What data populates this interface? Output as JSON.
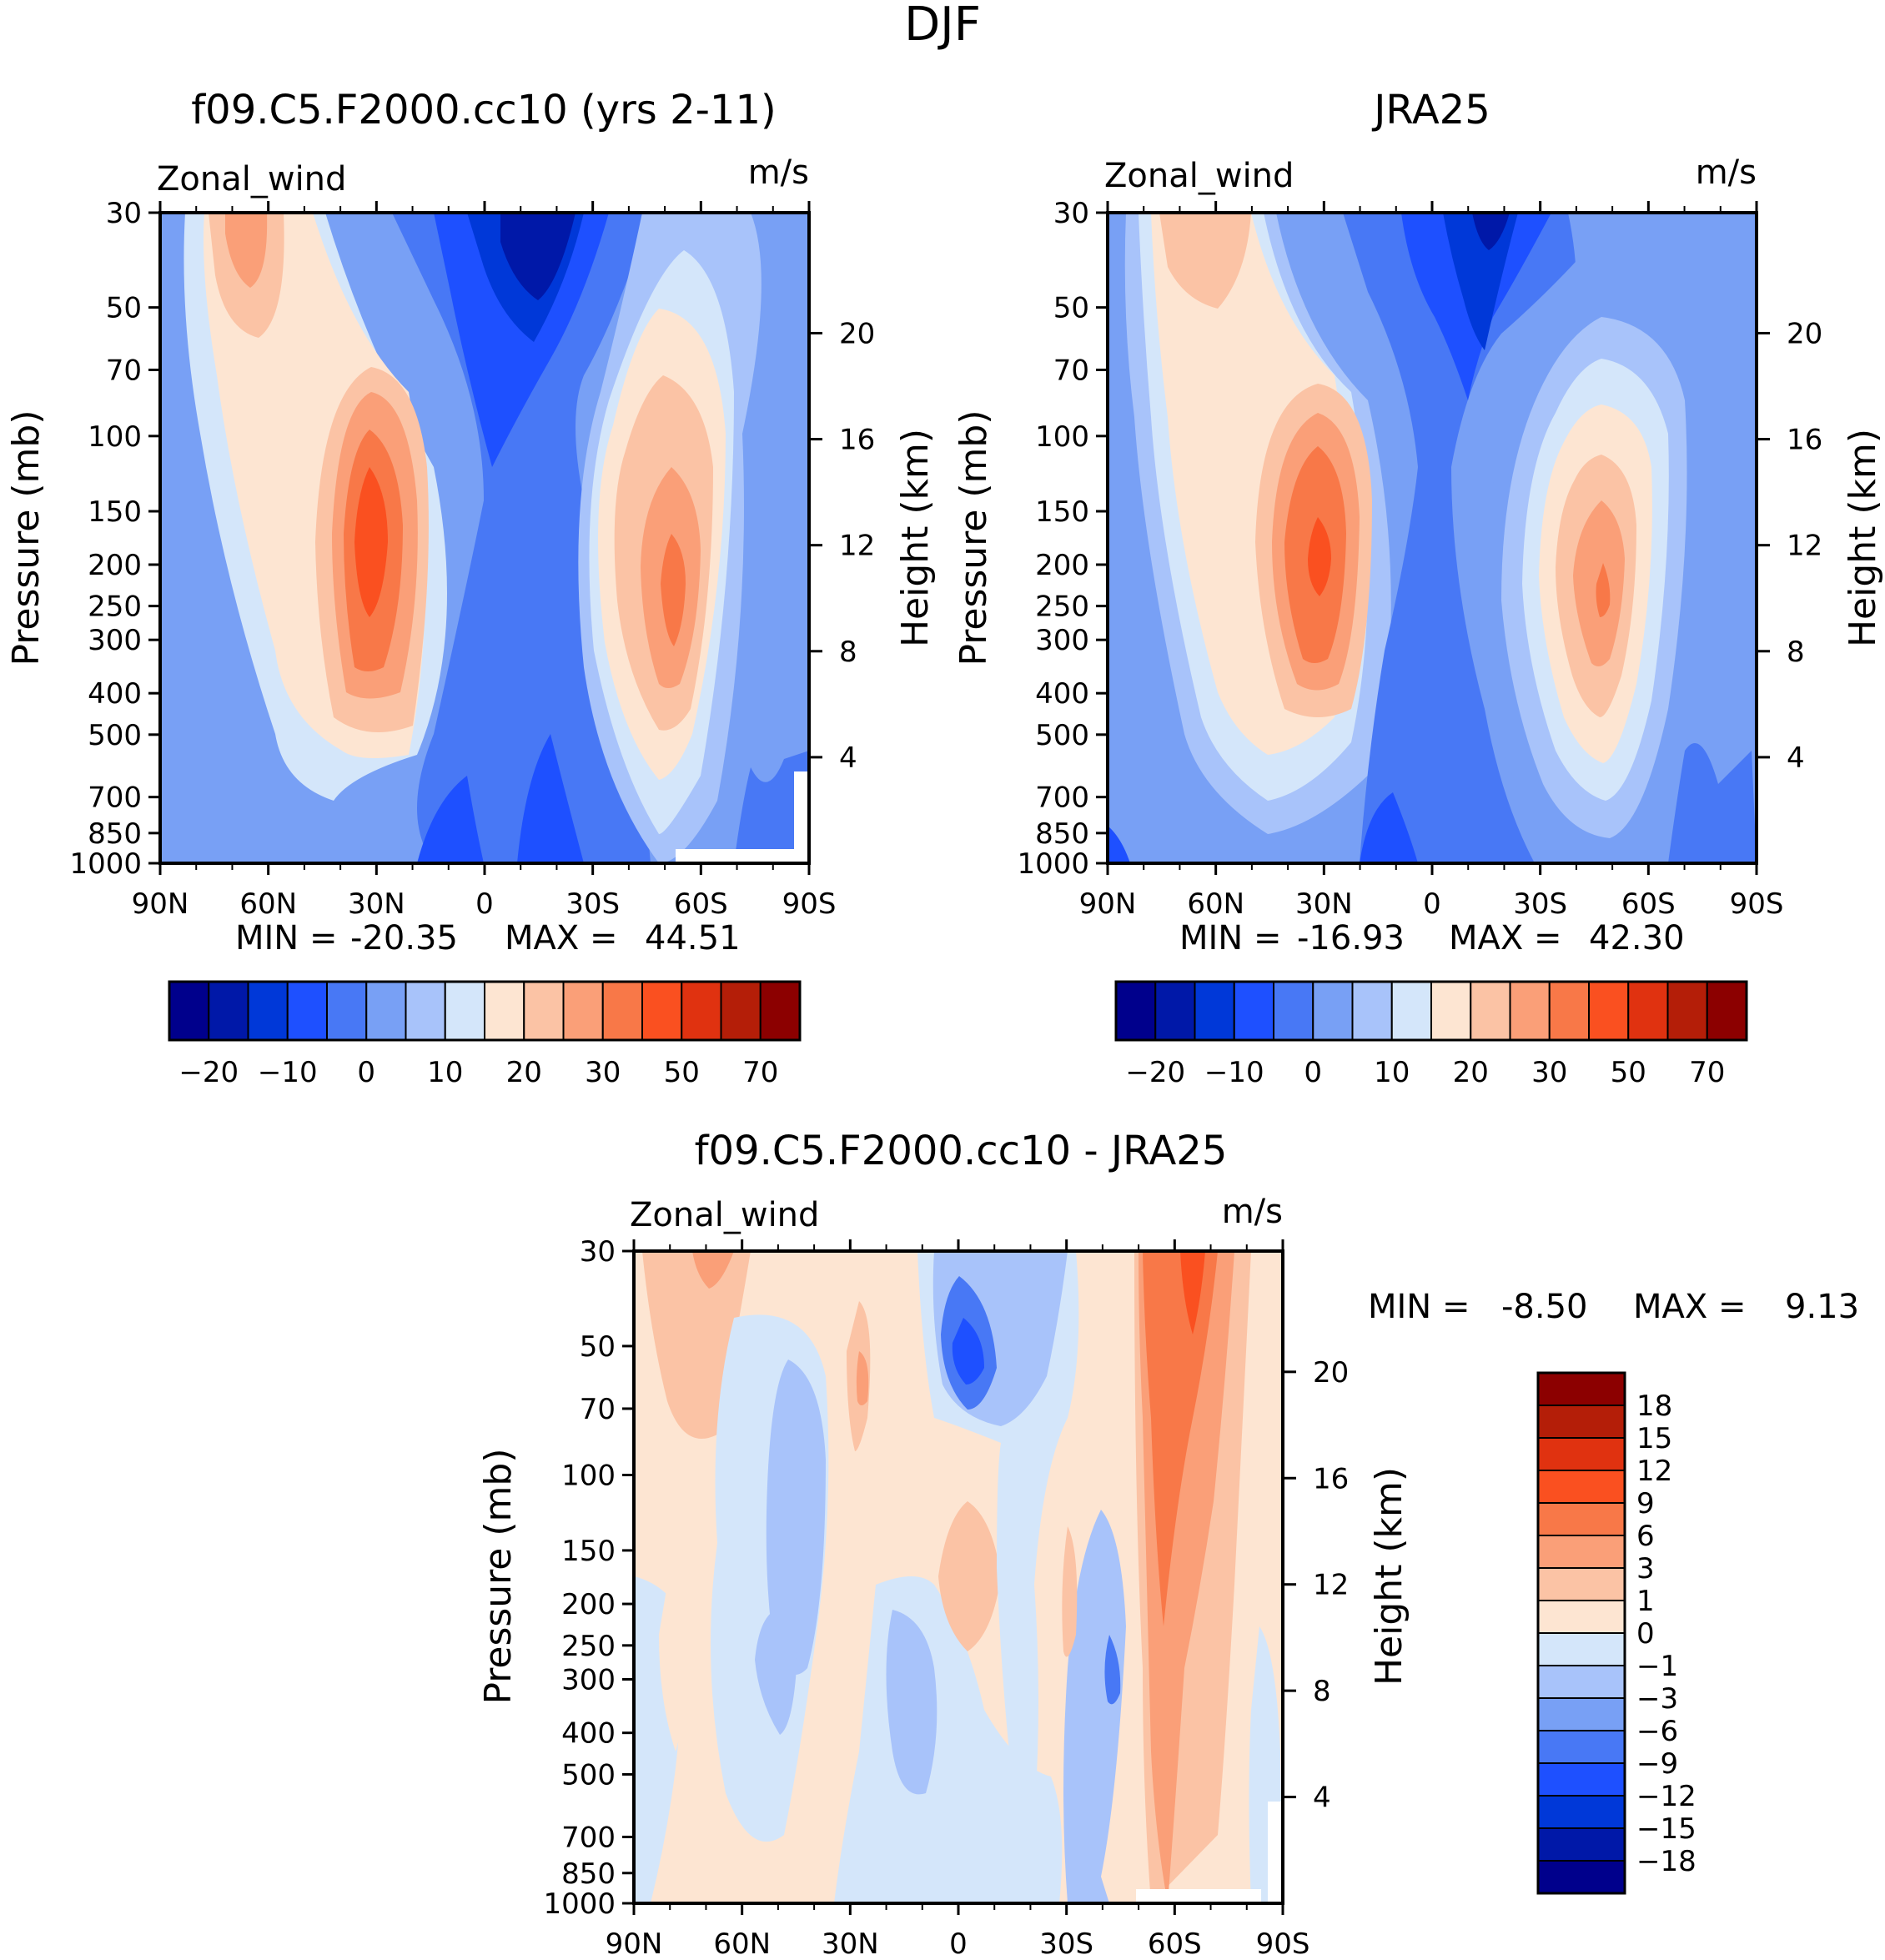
{
  "title": "DJF",
  "colors": {
    "main": [
      "#00008c",
      "#0018a8",
      "#0038d8",
      "#1e50ff",
      "#4878f5",
      "#78a0f5",
      "#a8c3fa",
      "#d4e6fa",
      "#fde5d2",
      "#fbc3a5",
      "#fa9f78",
      "#f87848",
      "#fa5020",
      "#e03210",
      "#b41e08",
      "#8c0000"
    ],
    "diff": [
      "#00008c",
      "#0018a8",
      "#0038d8",
      "#1e50ff",
      "#4878f5",
      "#78a0f5",
      "#a8c3fa",
      "#d4e6fa",
      "#fde5d2",
      "#fbc3a5",
      "#fa9f78",
      "#f87848",
      "#fa5020",
      "#e03210",
      "#b41e08",
      "#8c0000"
    ]
  },
  "chart_data": [
    {
      "type": "contour",
      "id": "model",
      "title": "f09.C5.F2000.cc10 (yrs 2-11)",
      "left_label": "Zonal_wind",
      "units_label": "m/s",
      "ylabel": "Pressure (mb)",
      "ylabel_right": "Height (km)",
      "x_ticks": [
        "90N",
        "60N",
        "30N",
        "0",
        "30S",
        "60S",
        "90S"
      ],
      "y_ticks": [
        "30",
        "50",
        "70",
        "100",
        "150",
        "200",
        "250",
        "300",
        "400",
        "500",
        "700",
        "850",
        "1000"
      ],
      "y_right_ticks": [
        "20",
        "16",
        "12",
        "8",
        "4"
      ],
      "min_label": "MIN =",
      "min_value": "-20.35",
      "max_label": "MAX =",
      "max_value": "44.51",
      "ylim": [
        1000,
        30
      ],
      "xlim": [
        90,
        -90
      ],
      "jets": [
        {
          "lat": 30,
          "p": 200,
          "max": 44.51
        },
        {
          "lat": -50,
          "p": 220,
          "max": 36
        }
      ],
      "minima": [
        {
          "lat": -15,
          "p": 40,
          "min": -20.35
        }
      ]
    },
    {
      "type": "contour",
      "id": "obs",
      "title": "JRA25",
      "left_label": "Zonal_wind",
      "units_label": "m/s",
      "ylabel": "Pressure (mb)",
      "ylabel_right": "Height (km)",
      "x_ticks": [
        "90N",
        "60N",
        "30N",
        "0",
        "30S",
        "60S",
        "90S"
      ],
      "y_ticks": [
        "30",
        "50",
        "70",
        "100",
        "150",
        "200",
        "250",
        "300",
        "400",
        "500",
        "700",
        "850",
        "1000"
      ],
      "y_right_ticks": [
        "20",
        "16",
        "12",
        "8",
        "4"
      ],
      "min_label": "MIN =",
      "min_value": "-16.93",
      "max_label": "MAX =",
      "max_value": "42.30",
      "ylim": [
        1000,
        30
      ],
      "xlim": [
        90,
        -90
      ],
      "jets": [
        {
          "lat": 30,
          "p": 200,
          "max": 42.3
        },
        {
          "lat": -48,
          "p": 240,
          "max": 32
        }
      ],
      "minima": [
        {
          "lat": -15,
          "p": 40,
          "min": -16.93
        }
      ]
    },
    {
      "type": "contour",
      "id": "diff",
      "title": "f09.C5.F2000.cc10 - JRA25",
      "left_label": "Zonal_wind",
      "units_label": "m/s",
      "ylabel": "Pressure (mb)",
      "ylabel_right": "Height (km)",
      "x_ticks": [
        "90N",
        "60N",
        "30N",
        "0",
        "30S",
        "60S",
        "90S"
      ],
      "y_ticks": [
        "30",
        "50",
        "70",
        "100",
        "150",
        "200",
        "250",
        "300",
        "400",
        "500",
        "700",
        "850",
        "1000"
      ],
      "y_right_ticks": [
        "20",
        "16",
        "12",
        "8",
        "4"
      ],
      "min_label": "MIN =",
      "min_value": "-8.50",
      "max_label": "MAX =",
      "max_value": "9.13",
      "ylim": [
        1000,
        30
      ],
      "xlim": [
        90,
        -90
      ]
    }
  ],
  "colorbars": {
    "main": {
      "labels": [
        "-20",
        "-10",
        "0",
        "10",
        "20",
        "30",
        "50",
        "70"
      ],
      "levels": [
        -25,
        -20,
        -15,
        -10,
        -5,
        0,
        5,
        10,
        15,
        20,
        25,
        30,
        40,
        50,
        60,
        70
      ]
    },
    "diff": {
      "labels": [
        "18",
        "15",
        "12",
        "9",
        "6",
        "3",
        "1",
        "0",
        "-1",
        "-3",
        "-6",
        "-9",
        "-12",
        "-15",
        "-18"
      ],
      "levels": [
        -18,
        -15,
        -12,
        -9,
        -6,
        -3,
        -1,
        0,
        1,
        3,
        6,
        9,
        12,
        15,
        18
      ]
    }
  }
}
